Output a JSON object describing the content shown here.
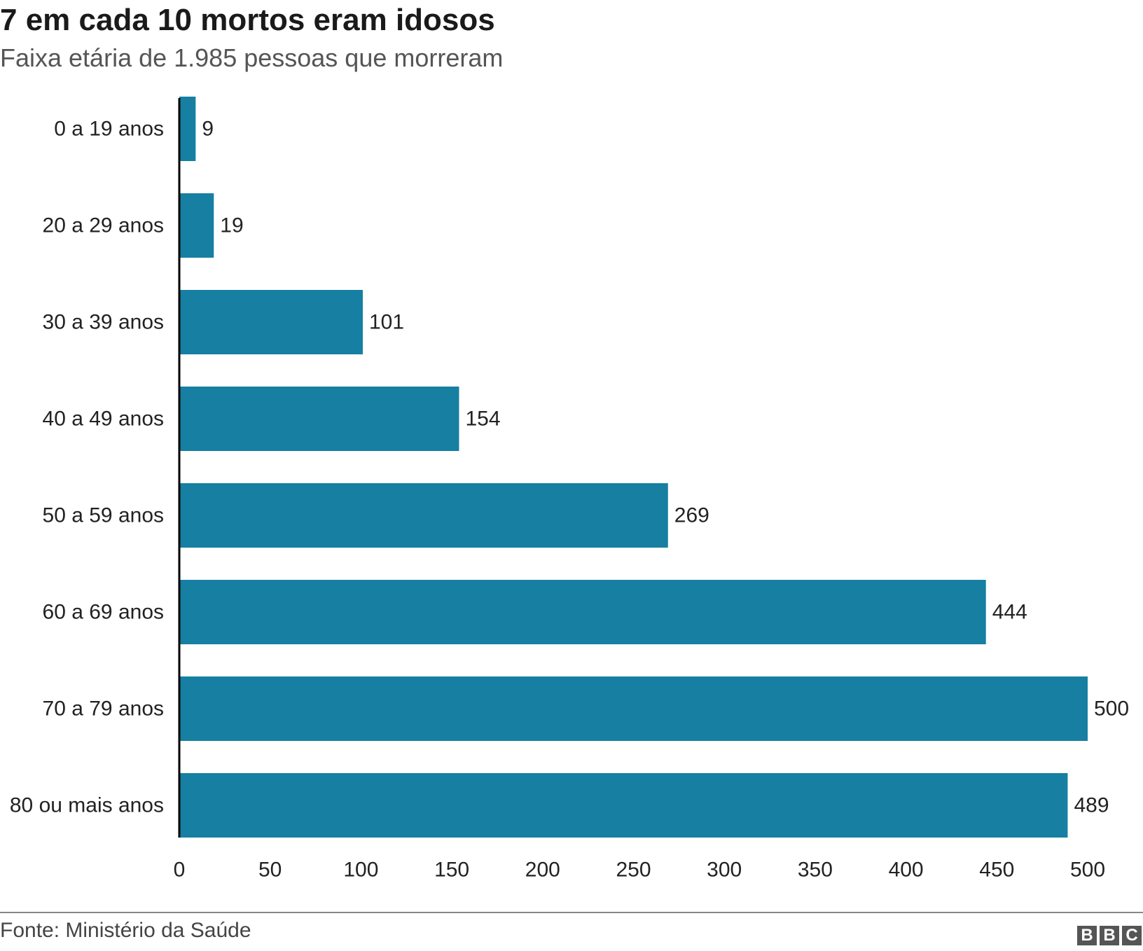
{
  "header": {
    "title": "7 em cada 10 mortos eram idosos",
    "subtitle": "Faixa etária de 1.985 pessoas que morreram"
  },
  "footer": {
    "source": "Fonte: Ministério da Saúde",
    "logo_letters": [
      "B",
      "B",
      "C"
    ]
  },
  "colors": {
    "bar": "#167fa2",
    "axis": "#000000",
    "text": "#222222"
  },
  "chart_data": {
    "type": "bar",
    "orientation": "horizontal",
    "categories": [
      "0 a 19 anos",
      "20 a 29 anos",
      "30 a 39 anos",
      "40 a 49 anos",
      "50 a 59 anos",
      "60 a 69 anos",
      "70 a 79 anos",
      "80 ou mais anos"
    ],
    "values": [
      9,
      19,
      101,
      154,
      269,
      444,
      500,
      489
    ],
    "value_labels": [
      "9",
      "19",
      "101",
      "154",
      "269",
      "444",
      "500",
      "489"
    ],
    "xlim": [
      0,
      500
    ],
    "xticks": [
      "0",
      "50",
      "100",
      "150",
      "200",
      "250",
      "300",
      "350",
      "400",
      "450",
      "500"
    ],
    "grid": false,
    "legend": "none"
  }
}
